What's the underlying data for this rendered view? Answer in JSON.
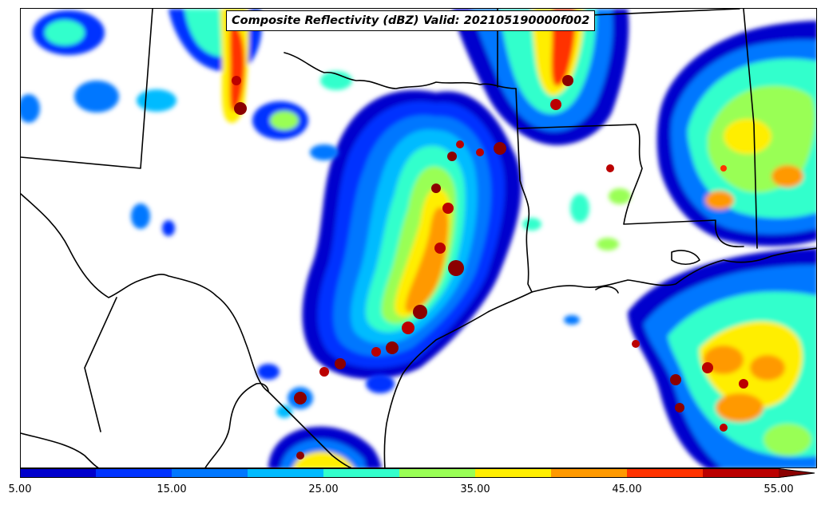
{
  "title": "Composite Reflectivity (dBZ) Valid: 202105190000f002",
  "colorbar": {
    "bins": [
      {
        "from": 5,
        "to": 10,
        "color": "#0000cd"
      },
      {
        "from": 10,
        "to": 15,
        "color": "#0033ff"
      },
      {
        "from": 15,
        "to": 20,
        "color": "#0077ff"
      },
      {
        "from": 20,
        "to": 25,
        "color": "#00bbff"
      },
      {
        "from": 25,
        "to": 30,
        "color": "#33ffcc"
      },
      {
        "from": 30,
        "to": 35,
        "color": "#99ff55"
      },
      {
        "from": 35,
        "to": 40,
        "color": "#ffee00"
      },
      {
        "from": 40,
        "to": 45,
        "color": "#ff9900"
      },
      {
        "from": 45,
        "to": 50,
        "color": "#ff3300"
      },
      {
        "from": 50,
        "to": 55,
        "color": "#bb0000"
      },
      {
        "from": 55,
        "to": 60,
        "color": "#8b0000"
      }
    ],
    "tick_labels": [
      "5.00",
      "15.00",
      "25.00",
      "35.00",
      "45.00",
      "55.00"
    ],
    "extend": "max"
  },
  "map": {
    "boundary_color": "#000000",
    "background": "#ffffff"
  }
}
